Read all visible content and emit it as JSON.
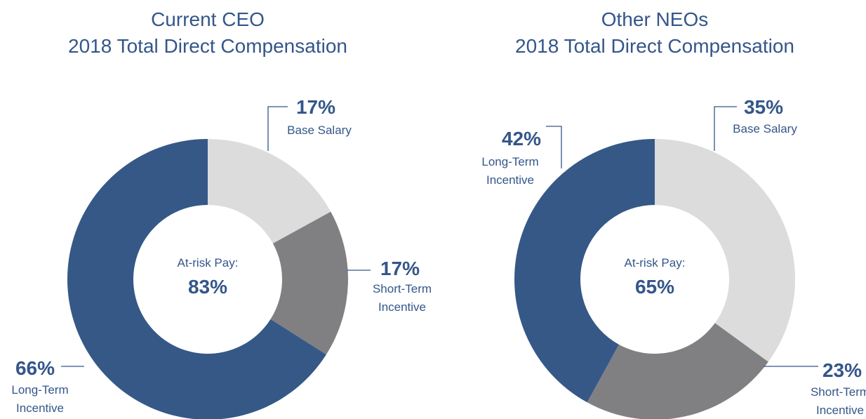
{
  "chart_data": [
    {
      "type": "pie",
      "donut": true,
      "title": [
        "Current CEO",
        "2018 Total Direct Compensation"
      ],
      "categories": [
        "Base Salary",
        "Short-Term\nIncentive",
        "Long-Term\nIncentive"
      ],
      "values": [
        17,
        17,
        66
      ],
      "value_labels": [
        "17%",
        "17%",
        "66%"
      ],
      "colors": [
        "#dcdcdd",
        "#808083",
        "#355887"
      ],
      "center_label": "At-risk Pay:",
      "center_value": 83,
      "center_value_label": "83%"
    },
    {
      "type": "pie",
      "donut": true,
      "title": [
        "Other NEOs",
        "2018 Total Direct Compensation"
      ],
      "categories": [
        "Base Salary",
        "Short-Term\nIncentive",
        "Long-Term\nIncentive"
      ],
      "values": [
        35,
        23,
        42
      ],
      "value_labels": [
        "35%",
        "23%",
        "42%"
      ],
      "colors": [
        "#dcdcdd",
        "#808083",
        "#355887"
      ],
      "center_label": "At-risk Pay:",
      "center_value": 65,
      "center_value_label": "65%"
    }
  ]
}
